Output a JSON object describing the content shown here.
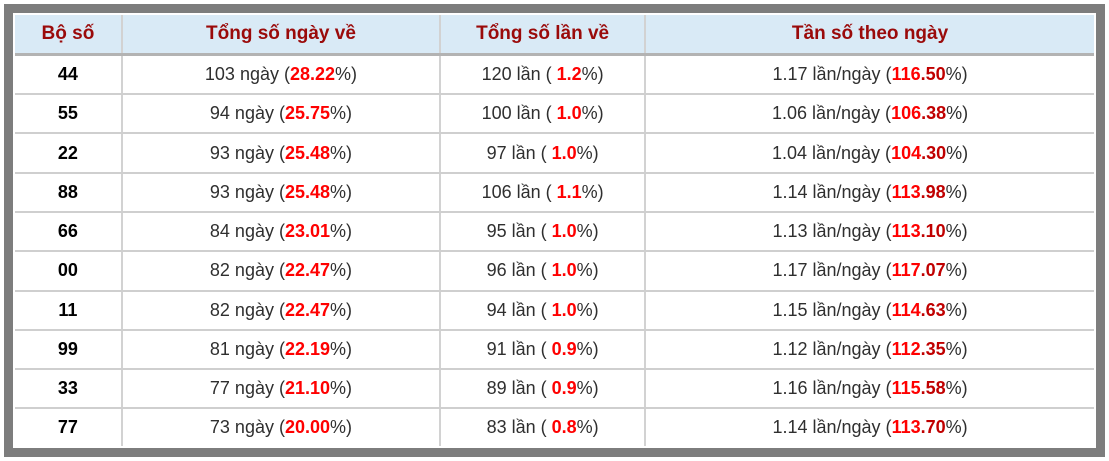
{
  "colors": {
    "frame_gray": "#7d7d7d",
    "header_bg": "#d9eaf6",
    "header_text": "#9a0a0a",
    "percent_red": "#ff0000",
    "percent_dark_red": "#c00000",
    "grid_line": "#cfcfcf"
  },
  "table": {
    "columns": [
      {
        "label": "Bộ số"
      },
      {
        "label": "Tổng số ngày về"
      },
      {
        "label": "Tổng số lần về"
      },
      {
        "label": "Tần số theo ngày"
      }
    ],
    "pct_close": "%)",
    "rows": [
      {
        "pair": "44",
        "days": "103 ngày (",
        "days_pct": "28.22",
        "times": "120 lần ( ",
        "times_pct": "1.2",
        "freq": "1.17 lần/ngày (",
        "freq_pct_int": "116",
        "freq_pct_dec": ".50"
      },
      {
        "pair": "55",
        "days": "94 ngày (",
        "days_pct": "25.75",
        "times": "100 lần ( ",
        "times_pct": "1.0",
        "freq": "1.06 lần/ngày (",
        "freq_pct_int": "106",
        "freq_pct_dec": ".38"
      },
      {
        "pair": "22",
        "days": "93 ngày (",
        "days_pct": "25.48",
        "times": "97 lần ( ",
        "times_pct": "1.0",
        "freq": "1.04 lần/ngày (",
        "freq_pct_int": "104",
        "freq_pct_dec": ".30"
      },
      {
        "pair": "88",
        "days": "93 ngày (",
        "days_pct": "25.48",
        "times": "106 lần ( ",
        "times_pct": "1.1",
        "freq": "1.14 lần/ngày (",
        "freq_pct_int": "113",
        "freq_pct_dec": ".98"
      },
      {
        "pair": "66",
        "days": "84 ngày (",
        "days_pct": "23.01",
        "times": "95 lần ( ",
        "times_pct": "1.0",
        "freq": "1.13 lần/ngày (",
        "freq_pct_int": "113",
        "freq_pct_dec": ".10"
      },
      {
        "pair": "00",
        "days": "82 ngày (",
        "days_pct": "22.47",
        "times": "96 lần ( ",
        "times_pct": "1.0",
        "freq": "1.17 lần/ngày (",
        "freq_pct_int": "117",
        "freq_pct_dec": ".07"
      },
      {
        "pair": "11",
        "days": "82 ngày (",
        "days_pct": "22.47",
        "times": "94 lần ( ",
        "times_pct": "1.0",
        "freq": "1.15 lần/ngày (",
        "freq_pct_int": "114",
        "freq_pct_dec": ".63"
      },
      {
        "pair": "99",
        "days": "81 ngày (",
        "days_pct": "22.19",
        "times": "91 lần ( ",
        "times_pct": "0.9",
        "freq": "1.12 lần/ngày (",
        "freq_pct_int": "112",
        "freq_pct_dec": ".35"
      },
      {
        "pair": "33",
        "days": "77 ngày (",
        "days_pct": "21.10",
        "times": "89 lần ( ",
        "times_pct": "0.9",
        "freq": "1.16 lần/ngày (",
        "freq_pct_int": "115",
        "freq_pct_dec": ".58"
      },
      {
        "pair": "77",
        "days": "73 ngày (",
        "days_pct": "20.00",
        "times": "83 lần ( ",
        "times_pct": "0.8",
        "freq": "1.14 lần/ngày (",
        "freq_pct_int": "113",
        "freq_pct_dec": ".70"
      }
    ]
  }
}
